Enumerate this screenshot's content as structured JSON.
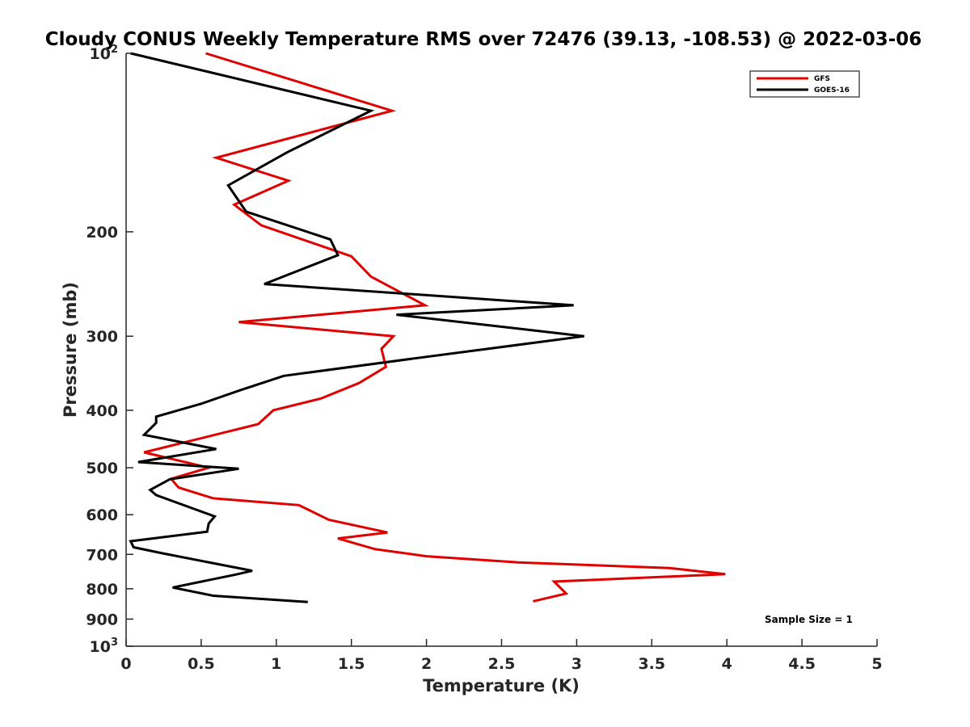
{
  "chart_data": {
    "type": "line",
    "title": "Cloudy CONUS Weekly Temperature RMS over 72476 (39.13, -108.53) @ 2022-03-06",
    "xlabel": "Temperature (K)",
    "ylabel": "Pressure (mb)",
    "xlim": [
      0,
      5
    ],
    "ylim": [
      100,
      1000
    ],
    "y_scale": "log",
    "y_reversed": true,
    "x_ticks": [
      0,
      0.5,
      1,
      1.5,
      2,
      2.5,
      3,
      3.5,
      4,
      4.5,
      5
    ],
    "x_tick_labels": [
      "0",
      "0.5",
      "1",
      "1.5",
      "2",
      "2.5",
      "3",
      "3.5",
      "4",
      "4.5",
      "5"
    ],
    "y_ticks": [
      {
        "value": 100,
        "base": "10",
        "exp": "2"
      },
      {
        "value": 200,
        "label": "200"
      },
      {
        "value": 300,
        "label": "300"
      },
      {
        "value": 400,
        "label": "400"
      },
      {
        "value": 500,
        "label": "500"
      },
      {
        "value": 600,
        "label": "600"
      },
      {
        "value": 700,
        "label": "700"
      },
      {
        "value": 800,
        "label": "800"
      },
      {
        "value": 900,
        "label": "900"
      },
      {
        "value": 1000,
        "base": "10",
        "exp": "3"
      }
    ],
    "legend_position": "top-right",
    "grid": false,
    "annotation": "Sample Size = 1",
    "series": [
      {
        "name": "GFS",
        "color": "#e00000",
        "points": [
          [
            0.53,
            100
          ],
          [
            1.77,
            125
          ],
          [
            0.6,
            150
          ],
          [
            1.08,
            164
          ],
          [
            0.72,
            180
          ],
          [
            0.9,
            195
          ],
          [
            1.5,
            220
          ],
          [
            1.63,
            238
          ],
          [
            1.99,
            266
          ],
          [
            0.75,
            284
          ],
          [
            1.78,
            300
          ],
          [
            1.7,
            315
          ],
          [
            1.73,
            338
          ],
          [
            1.55,
            360
          ],
          [
            1.3,
            382
          ],
          [
            0.98,
            400
          ],
          [
            0.88,
            422
          ],
          [
            0.12,
            471
          ],
          [
            0.55,
            500
          ],
          [
            0.3,
            522
          ],
          [
            0.35,
            540
          ],
          [
            0.58,
            563
          ],
          [
            1.15,
            578
          ],
          [
            1.35,
            612
          ],
          [
            1.74,
            643
          ],
          [
            1.41,
            658
          ],
          [
            1.66,
            686
          ],
          [
            2.0,
            705
          ],
          [
            2.61,
            722
          ],
          [
            3.62,
            738
          ],
          [
            3.99,
            756
          ],
          [
            2.85,
            778
          ],
          [
            2.93,
            815
          ],
          [
            2.71,
            840
          ]
        ]
      },
      {
        "name": "GOES-16",
        "color": "#000000",
        "points": [
          [
            0.03,
            100
          ],
          [
            1.63,
            125
          ],
          [
            1.07,
            147
          ],
          [
            0.68,
            167
          ],
          [
            0.8,
            185
          ],
          [
            1.36,
            206
          ],
          [
            1.41,
            219
          ],
          [
            0.92,
            245
          ],
          [
            2.98,
            266
          ],
          [
            1.8,
            276
          ],
          [
            3.05,
            300
          ],
          [
            1.92,
            327
          ],
          [
            1.05,
            350
          ],
          [
            0.76,
            370
          ],
          [
            0.5,
            390
          ],
          [
            0.2,
            410
          ],
          [
            0.2,
            420
          ],
          [
            0.12,
            440
          ],
          [
            0.6,
            465
          ],
          [
            0.08,
            489
          ],
          [
            0.75,
            502
          ],
          [
            0.29,
            523
          ],
          [
            0.16,
            545
          ],
          [
            0.2,
            556
          ],
          [
            0.59,
            604
          ],
          [
            0.55,
            621
          ],
          [
            0.54,
            641
          ],
          [
            0.03,
            665
          ],
          [
            0.05,
            681
          ],
          [
            0.24,
            697
          ],
          [
            0.84,
            746
          ],
          [
            0.73,
            757
          ],
          [
            0.31,
            796
          ],
          [
            0.58,
            822
          ],
          [
            1.21,
            842
          ]
        ]
      }
    ]
  }
}
